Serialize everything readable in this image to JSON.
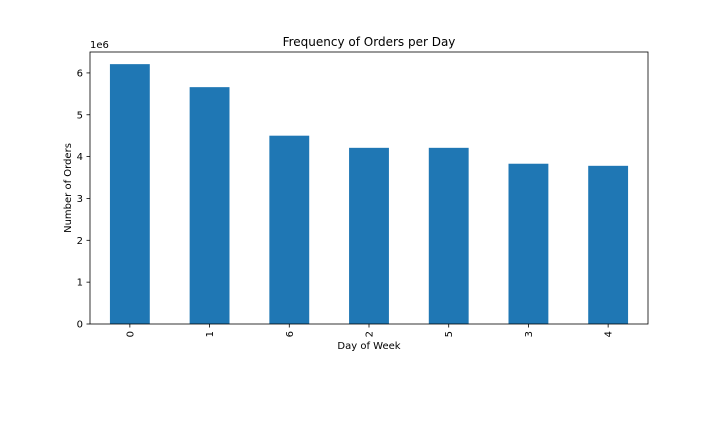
{
  "chart_data": {
    "type": "bar",
    "title": "Frequency of Orders per Day",
    "xlabel": "Day of Week",
    "ylabel": "Number of Orders",
    "y_scale_label": "1e6",
    "categories": [
      "0",
      "1",
      "6",
      "2",
      "5",
      "3",
      "4"
    ],
    "values": [
      6.21,
      5.66,
      4.5,
      4.21,
      4.21,
      3.83,
      3.78
    ],
    "value_multiplier": 1000000,
    "ylim": [
      0,
      6.5
    ],
    "yticks": [
      "0",
      "1",
      "2",
      "3",
      "4",
      "5",
      "6"
    ],
    "grid": false,
    "bar_color": "#1f77b4"
  }
}
